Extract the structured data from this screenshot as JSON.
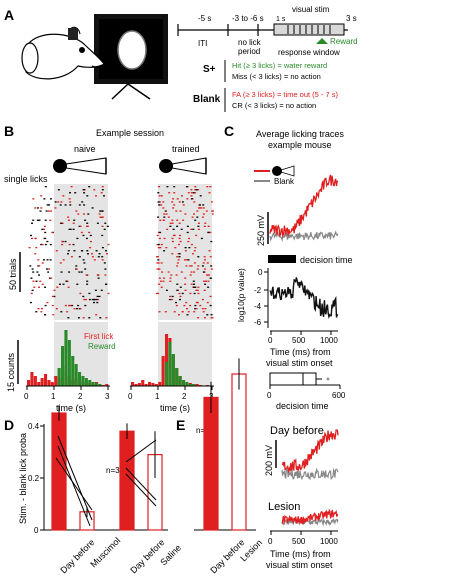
{
  "panels": {
    "A": "A",
    "B": "B",
    "C": "C",
    "D": "D",
    "E": "E"
  },
  "A": {
    "timeline": [
      "-5 s",
      "-3 to -6 s",
      "1 s",
      "3 s"
    ],
    "iti": "ITI",
    "no_lick": [
      "no lick",
      "period"
    ],
    "visual_stim": "visual stim",
    "reward": "Reward",
    "response_window": "response window",
    "s_plus": "S+",
    "blank": "Blank",
    "hit": "Hit (≥ 3 licks) = water reward",
    "miss": "Miss (< 3 licks) = no action",
    "fa": "FA (≥ 3 licks) = time out (5 - 7 s)",
    "cr": "CR (< 3 licks) = no action"
  },
  "B": {
    "title": "Example session",
    "naive": "naive",
    "trained": "trained",
    "single_licks": "single licks",
    "trials": "50 trials",
    "counts": "15 counts",
    "first_lick": "First lick",
    "reward": "Reward",
    "xlabel": "time (s)",
    "ticks": [
      "0",
      "1",
      "2",
      "3"
    ]
  },
  "C": {
    "title": [
      "Average licking traces",
      "example mouse"
    ],
    "blank": "Blank",
    "scale": "250 mV",
    "decision_time": "decision time",
    "ylabel": "log10(p value)",
    "yticks": [
      "0",
      "-2",
      "-4",
      "-6"
    ],
    "xticks": [
      "0",
      "500",
      "1000"
    ],
    "xlabel": [
      "Time (ms) from",
      "visual stim onset"
    ],
    "box_xlabel": "decision time",
    "box_ticks": [
      "0",
      "600"
    ]
  },
  "D": {
    "ylabel": "Stim. - blank lick proba",
    "yticks": [
      "0",
      "0.2",
      "0.4"
    ],
    "n": "n=3",
    "xlabels": [
      "Day before",
      "Muscimol",
      "Day before",
      "Saline"
    ]
  },
  "E": {
    "n": "n=1",
    "xlabels": [
      "Day before",
      "Lesion"
    ],
    "day_before": "Day before",
    "lesion": "Lesion",
    "scale": "200 mV",
    "xticks": [
      "0",
      "500",
      "1000"
    ],
    "xlabel": [
      "Time (ms) from",
      "visual stim onset"
    ]
  },
  "chart_data": [
    {
      "type": "bar",
      "categories": [
        "Day before",
        "Muscimol",
        "Day before",
        "Saline"
      ],
      "values": [
        0.45,
        0.07,
        0.38,
        0.29
      ],
      "ylim": [
        0,
        0.45
      ],
      "ylabel": "Stim. - blank lick proba"
    },
    {
      "type": "bar",
      "categories": [
        "Day before",
        "Lesion"
      ],
      "values": [
        0.51,
        0.6
      ]
    },
    {
      "type": "bar",
      "categories": [
        "naive",
        "trained"
      ],
      "title": "Example session",
      "xlabel": "time (s)",
      "ylabel": "15 counts",
      "series": [
        {
          "name": "First lick"
        },
        {
          "name": "Reward"
        }
      ]
    },
    {
      "type": "line",
      "title": "Average licking traces example mouse",
      "series": [
        {
          "name": "Blank"
        }
      ],
      "xlabel": "Time (ms) from visual stim onset",
      "ylabel": "log10(p value)"
    }
  ],
  "colors": {
    "red": "#e02020",
    "green": "#2a8a2a",
    "gray": "#888888",
    "shade": "#e4e4e4"
  }
}
